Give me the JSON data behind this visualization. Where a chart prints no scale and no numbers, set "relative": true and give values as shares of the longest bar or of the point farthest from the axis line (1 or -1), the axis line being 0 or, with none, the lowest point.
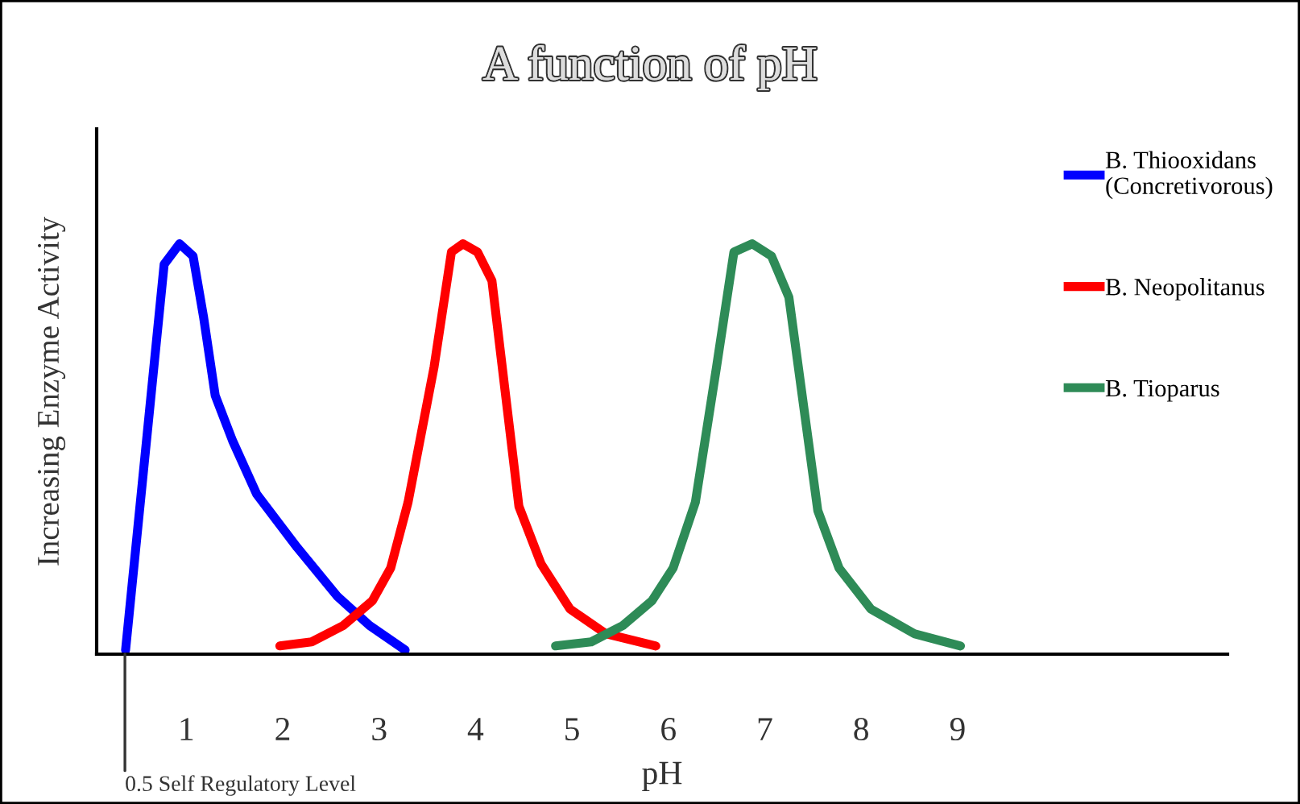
{
  "chart_data": {
    "type": "line",
    "title": "A function of pH",
    "xlabel": "pH",
    "ylabel": "Increasing Enzyme Activity",
    "relative": true,
    "xlim": [
      0.07,
      11.8
    ],
    "xticks": [
      1,
      2,
      3,
      4,
      5,
      6,
      7,
      8,
      9
    ],
    "grid": false,
    "legend": "top right",
    "marker": "none",
    "line_style": "solid",
    "annotations": [
      "0.5 Self Regulatory Level"
    ],
    "series": [
      {
        "name": "B. Thiooxidans\n(Concretivorous)",
        "color": "#0000ff",
        "x": [
          0.37,
          0.77,
          0.93,
          1.07,
          1.18,
          1.3,
          1.48,
          1.73,
          2.15,
          2.57,
          2.9,
          3.27
        ],
        "values": [
          0.01,
          0.95,
          1.0,
          0.97,
          0.82,
          0.63,
          0.52,
          0.39,
          0.26,
          0.14,
          0.07,
          0.01
        ]
      },
      {
        "name": "B. Neopolitanus",
        "color": "#ff0000",
        "x": [
          1.97,
          2.3,
          2.63,
          2.93,
          3.12,
          3.3,
          3.57,
          3.75,
          3.87,
          4.02,
          4.17,
          4.45,
          4.68,
          4.98,
          5.35,
          5.87
        ],
        "values": [
          0.02,
          0.03,
          0.07,
          0.13,
          0.21,
          0.37,
          0.7,
          0.98,
          1.0,
          0.98,
          0.91,
          0.36,
          0.22,
          0.11,
          0.05,
          0.02
        ]
      },
      {
        "name": "B. Tioparus",
        "color": "#2e8b57",
        "x": [
          4.83,
          5.2,
          5.53,
          5.83,
          6.05,
          6.28,
          6.5,
          6.68,
          6.87,
          7.07,
          7.25,
          7.55,
          7.77,
          8.1,
          8.55,
          9.03
        ],
        "values": [
          0.02,
          0.03,
          0.07,
          0.13,
          0.21,
          0.37,
          0.7,
          0.98,
          1.0,
          0.97,
          0.87,
          0.35,
          0.21,
          0.11,
          0.05,
          0.02
        ]
      }
    ]
  }
}
